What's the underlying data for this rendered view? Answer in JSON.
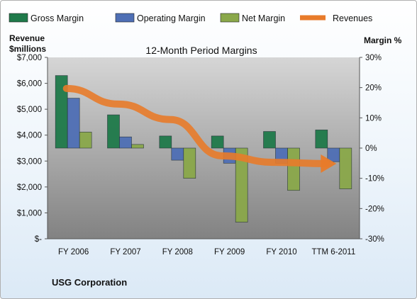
{
  "chart_data": {
    "type": "bar",
    "title": "12-Month Period Margins",
    "company": "USG Corporation",
    "categories": [
      "FY 2006",
      "FY 2007",
      "FY 2008",
      "FY 2009",
      "FY 2010",
      "TTM 6-2011"
    ],
    "left_axis": {
      "label_line1": "Revenue",
      "label_line2": "$millions",
      "min": 0,
      "max": 7000,
      "ticks": [
        {
          "value": 0,
          "label": "$-"
        },
        {
          "value": 1000,
          "label": "$1,000"
        },
        {
          "value": 2000,
          "label": "$2,000"
        },
        {
          "value": 3000,
          "label": "$3,000"
        },
        {
          "value": 4000,
          "label": "$4,000"
        },
        {
          "value": 5000,
          "label": "$5,000"
        },
        {
          "value": 6000,
          "label": "$6,000"
        },
        {
          "value": 7000,
          "label": "$7,000"
        }
      ]
    },
    "right_axis": {
      "label": "Margin %",
      "min": -30,
      "max": 30,
      "ticks": [
        {
          "value": 30,
          "label": "30%"
        },
        {
          "value": 20,
          "label": "20%"
        },
        {
          "value": 10,
          "label": "10%"
        },
        {
          "value": 0,
          "label": "0%"
        },
        {
          "value": -10,
          "label": "-10%"
        },
        {
          "value": -20,
          "label": "-20%"
        },
        {
          "value": -30,
          "label": "-30%"
        }
      ]
    },
    "series": [
      {
        "name": "Gross Margin",
        "axis": "right",
        "color": "#1f7a4a",
        "values": [
          24,
          11,
          4,
          4,
          5.5,
          6
        ]
      },
      {
        "name": "Operating Margin",
        "axis": "right",
        "color": "#4f6fb5",
        "values": [
          16.5,
          3.7,
          -4,
          -5,
          -5,
          -4.5
        ]
      },
      {
        "name": "Net Margin",
        "axis": "right",
        "color": "#8aa84a",
        "values": [
          5.3,
          1.2,
          -10,
          -24.5,
          -14,
          -13.5
        ]
      },
      {
        "name": "Revenues",
        "axis": "left",
        "type": "line",
        "color": "#e87b2a",
        "values": [
          5800,
          5200,
          4600,
          3200,
          2950,
          2900
        ]
      }
    ],
    "legend_position": "top",
    "grid": false
  }
}
